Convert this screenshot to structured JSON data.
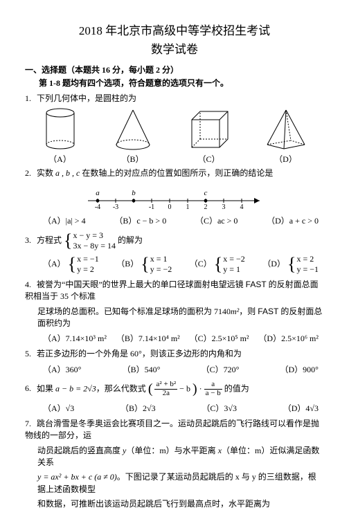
{
  "header": {
    "title": "2018 年北京市高级中等学校招生考试",
    "subtitle": "数学试卷"
  },
  "section": {
    "head": "一、选择题（本题共 16 分，每小题 2 分）",
    "sub": "第 1-8 题均有四个选项，符合题意的选项只有一个。"
  },
  "q1": {
    "text": "下列几何体中，是圆柱的为",
    "caps": {
      "a": "（A）",
      "b": "（B）",
      "c": "（C）",
      "d": "（D）"
    }
  },
  "q2": {
    "text_a": "实数 ",
    "vars": "a , b , c",
    "text_b": " 在数轴上的对应点的位置如图所示，则正确的结论是",
    "ticks": [
      "-4",
      "-3",
      "",
      "-1",
      "0",
      "1",
      "2",
      "3",
      "4"
    ],
    "labels": [
      "a",
      "",
      "b",
      "",
      "",
      "",
      "c",
      "",
      ""
    ],
    "opts": {
      "a": "（A）|a| > 4",
      "b": "（B）c − b > 0",
      "c": "（C）ac > 0",
      "d": "（D）a + c > 0"
    }
  },
  "q3": {
    "lead": "方程式 ",
    "sys_top": "x − y = 3",
    "sys_bot": "3x − 8y = 14",
    "tail": " 的解为",
    "a_top": "x = −1",
    "a_bot": "y = 2",
    "b_top": "x = 1",
    "b_bot": "y = −2",
    "c_top": "x = −2",
    "c_bot": "y = 1",
    "d_top": "x = 2",
    "d_bot": "y = −1",
    "labels": {
      "a": "（A）",
      "b": "（B）",
      "c": "（C）",
      "d": "（D）"
    }
  },
  "q4": {
    "line1_a": "被誉为“中国天眼”的世界上最大的单口径球面射电望远镜 ",
    "fast": "FAST",
    "line1_b": " 的反射面总面积相当于 35 个标准",
    "line2_a": "足球场的总面积。已知每个标准足球场的面积为 7140",
    "m2_1": "m²",
    "line2_b": "，则 ",
    "line2_c": " 的反射面总面积约为",
    "opts": {
      "a": "（A）7.14×10³ m²",
      "b": "（B）7.14×10⁴ m²",
      "c": "（C）2.5×10⁵ m²",
      "d": "（D）2.5×10⁶ m²"
    }
  },
  "q5": {
    "text_a": "若正多边形的一个外角是 ",
    "deg": "60°",
    "text_b": "，则该正多边形的内角和为",
    "opts": {
      "a": "（A）360°",
      "b": "（B）540°",
      "c": "（C）720°",
      "d": "（D）900°"
    }
  },
  "q6": {
    "lead_a": "如果 ",
    "cond": "a − b = 2√3",
    "lead_b": "，那么代数式 ",
    "frac1_num": "a² + b²",
    "frac1_den": "2a",
    "minus_b": " − b",
    "dot": " · ",
    "frac2_num": "a",
    "frac2_den": "a − b",
    "tail": " 的值为",
    "opts": {
      "a": "（A）√3",
      "b": "（B）2√3",
      "c": "（C）3√3",
      "d": "（D）4√3"
    }
  },
  "q7": {
    "l1": "跳台滑雪是冬季奥运会比赛项目之一。运动员起跳后的飞行路线可以看作是抛物线的一部分，运",
    "l2_a": "动员起跳后的竖直高度 ",
    "y": "y",
    "l2_b": "（单位：m）与水平距离 ",
    "x": "x",
    "l2_c": "（单位：m）近似满足函数关系",
    "l3_a": "y = ax² + bx + c (a ≠ 0)",
    "l3_b": "。下图记录了某运动员起跳后的 x 与 y 的三组数据，根据上述函数模型",
    "l4": "和数据，可推断出该运动员起跳后飞行到最高点时，水平距离为"
  }
}
